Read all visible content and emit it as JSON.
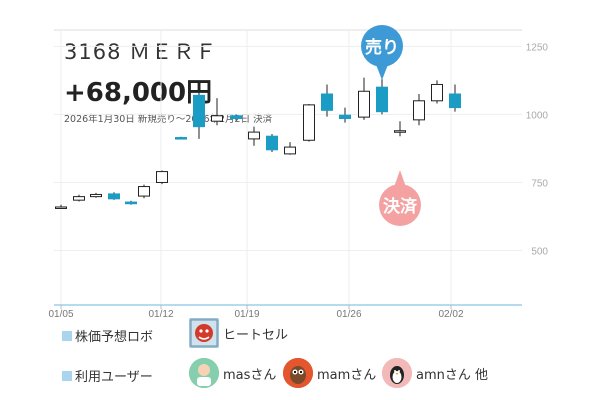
{
  "header": {
    "title": "3168 ＭＥＲＦ",
    "profit": "+68,000円",
    "subtitle": "2026年1月30日 新規売り～2026年2月2日 決済"
  },
  "markers": {
    "sell_label": "売り",
    "settle_label": "決済",
    "sell_color": "#3e9ad6",
    "settle_color": "#f4a1a1"
  },
  "colors": {
    "up_candle": "#1a9cc4",
    "down_candle": "#ffffff"
  },
  "chart_data": {
    "type": "candlestick",
    "x_tick_labels": [
      "01/05",
      "01/12",
      "01/19",
      "01/26",
      "02/02"
    ],
    "y_ticks": [
      500,
      750,
      1000,
      1250
    ],
    "ylim": [
      300,
      1310
    ],
    "grid": true,
    "candles": [
      {
        "open": 660,
        "close": 660,
        "high": 668,
        "low": 654,
        "fill": "hollow"
      },
      {
        "open": 685,
        "close": 698,
        "high": 705,
        "low": 680,
        "fill": "hollow"
      },
      {
        "open": 698,
        "close": 706,
        "high": 712,
        "low": 694,
        "fill": "hollow"
      },
      {
        "open": 708,
        "close": 690,
        "high": 714,
        "low": 686,
        "fill": "blue"
      },
      {
        "open": 678,
        "close": 672,
        "high": 683,
        "low": 668,
        "fill": "blue"
      },
      {
        "open": 700,
        "close": 735,
        "high": 742,
        "low": 692,
        "fill": "hollow"
      },
      {
        "open": 750,
        "close": 790,
        "high": 794,
        "low": 744,
        "fill": "hollow"
      },
      {
        "open": 915,
        "close": 915,
        "high": 918,
        "low": 912,
        "fill": "blue"
      },
      {
        "open": 1070,
        "close": 955,
        "high": 1085,
        "low": 910,
        "fill": "blue"
      },
      {
        "open": 975,
        "close": 995,
        "high": 1060,
        "low": 960,
        "fill": "hollow"
      },
      {
        "open": 995,
        "close": 985,
        "high": 1000,
        "low": 978,
        "fill": "blue"
      },
      {
        "open": 910,
        "close": 935,
        "high": 955,
        "low": 885,
        "fill": "hollow"
      },
      {
        "open": 920,
        "close": 870,
        "high": 928,
        "low": 862,
        "fill": "blue"
      },
      {
        "open": 855,
        "close": 880,
        "high": 898,
        "low": 852,
        "fill": "hollow"
      },
      {
        "open": 905,
        "close": 1035,
        "high": 1038,
        "low": 900,
        "fill": "hollow"
      },
      {
        "open": 1075,
        "close": 1015,
        "high": 1110,
        "low": 992,
        "fill": "blue"
      },
      {
        "open": 997,
        "close": 985,
        "high": 1025,
        "low": 970,
        "fill": "blue"
      },
      {
        "open": 990,
        "close": 1085,
        "high": 1135,
        "low": 980,
        "fill": "hollow"
      },
      {
        "open": 1100,
        "close": 1010,
        "high": 1235,
        "low": 1000,
        "fill": "blue"
      },
      {
        "open": 940,
        "close": 940,
        "high": 975,
        "low": 920,
        "fill": "hollow"
      },
      {
        "open": 980,
        "close": 1050,
        "high": 1075,
        "low": 960,
        "fill": "hollow"
      },
      {
        "open": 1050,
        "close": 1110,
        "high": 1125,
        "low": 1040,
        "fill": "hollow"
      },
      {
        "open": 1075,
        "close": 1025,
        "high": 1110,
        "low": 1010,
        "fill": "blue"
      }
    ],
    "sell_candle_index": 18,
    "settle_candle_index": 19
  },
  "legend": {
    "robot_label": "株価予想ロボ",
    "robot_name": "ヒートセル",
    "users_label": "利用ユーザー",
    "users": [
      "masさん",
      "mamさん",
      "amnさん 他"
    ]
  }
}
